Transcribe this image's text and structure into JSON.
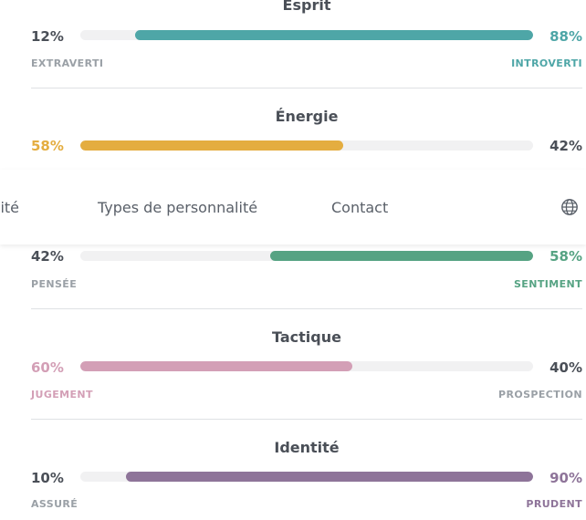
{
  "colors": {
    "teal": "#4ea6a7",
    "gold": "#e4ad40",
    "green": "#56a383",
    "pink": "#d39fb6",
    "purple": "#8e7499",
    "neutral_text": "#4a4f57",
    "pole_text": "#9aa0a6"
  },
  "navigation": {
    "items": [
      "lité",
      "Types de personnalité",
      "Contact"
    ],
    "globe_icon": "globe-icon"
  },
  "traits": [
    {
      "title": "Esprit",
      "left_pct": "12%",
      "right_pct": "88%",
      "left_value": 12,
      "right_value": 88,
      "dominant": "right",
      "left_label": "EXTRAVERTI",
      "right_label": "INTROVERTI",
      "color": "#4ea6a7"
    },
    {
      "title": "Énergie",
      "left_pct": "58%",
      "right_pct": "42%",
      "left_value": 58,
      "right_value": 42,
      "dominant": "left",
      "left_label": "",
      "right_label": "",
      "color": "#e4ad40"
    },
    {
      "title": "",
      "left_pct": "42%",
      "right_pct": "58%",
      "left_value": 42,
      "right_value": 58,
      "dominant": "right",
      "left_label": "PENSÉE",
      "right_label": "SENTIMENT",
      "color": "#56a383"
    },
    {
      "title": "Tactique",
      "left_pct": "60%",
      "right_pct": "40%",
      "left_value": 60,
      "right_value": 40,
      "dominant": "left",
      "left_label": "JUGEMENT",
      "right_label": "PROSPECTION",
      "color": "#d39fb6"
    },
    {
      "title": "Identité",
      "left_pct": "10%",
      "right_pct": "90%",
      "left_value": 10,
      "right_value": 90,
      "dominant": "right",
      "left_label": "ASSURÉ",
      "right_label": "PRUDENT",
      "color": "#8e7499"
    }
  ]
}
